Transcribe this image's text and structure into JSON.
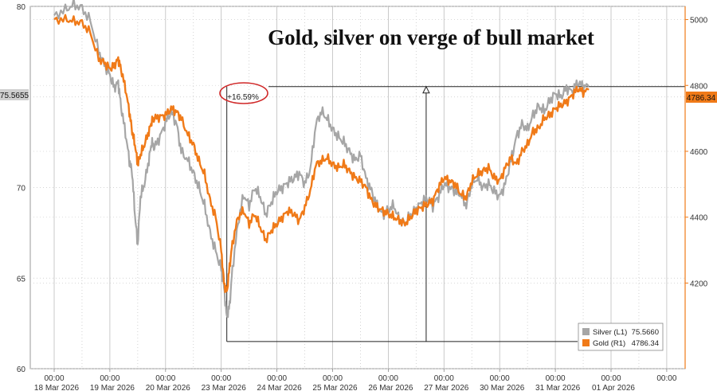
{
  "chart_data": {
    "type": "line",
    "title": "Gold, silver on verge of bull market",
    "x_ticks": [
      {
        "time": "00:00",
        "date": "18 Mar 2026"
      },
      {
        "time": "00:00",
        "date": "19 Mar 2026"
      },
      {
        "time": "00:00",
        "date": "20 Mar 2026"
      },
      {
        "time": "00:00",
        "date": "23 Mar 2026"
      },
      {
        "time": "00:00",
        "date": "24 Mar 2026"
      },
      {
        "time": "00:00",
        "date": "25 Mar 2026"
      },
      {
        "time": "00:00",
        "date": "26 Mar 2026"
      },
      {
        "time": "00:00",
        "date": "27 Mar 2026"
      },
      {
        "time": "00:00",
        "date": "30 Mar 2026"
      },
      {
        "time": "00:00",
        "date": "31 Mar 2026"
      },
      {
        "time": "00:00",
        "date": "01 Apr 2026"
      },
      {
        "time": "00:00",
        "date": ""
      }
    ],
    "left_axis": {
      "ylim": [
        60,
        80
      ],
      "ticks": [
        60,
        65,
        70,
        75,
        80
      ]
    },
    "right_axis": {
      "ylim": [
        3940,
        5040
      ],
      "ticks": [
        4200,
        4400,
        4600,
        4800,
        5000
      ]
    },
    "grid": true,
    "legend_position": "bottom-right",
    "series": [
      {
        "name": "Silver",
        "legend_label": "Silver  (L1)",
        "legend_value": "75.5660",
        "last_value_tag": "75.5655",
        "axis": "left",
        "color": "#a6a6a6",
        "points": [
          [
            0.0,
            79.5
          ],
          [
            0.2,
            79.8
          ],
          [
            0.35,
            80.1
          ],
          [
            0.5,
            79.9
          ],
          [
            0.65,
            79.2
          ],
          [
            0.8,
            77.5
          ],
          [
            0.9,
            76.8
          ],
          [
            1.0,
            76.2
          ],
          [
            1.08,
            75.5
          ],
          [
            1.15,
            75.8
          ],
          [
            1.2,
            74.5
          ],
          [
            1.28,
            73.0
          ],
          [
            1.35,
            71.5
          ],
          [
            1.4,
            70.8
          ],
          [
            1.45,
            68.5
          ],
          [
            1.5,
            66.8
          ],
          [
            1.55,
            69.5
          ],
          [
            1.62,
            70.2
          ],
          [
            1.7,
            71.5
          ],
          [
            1.75,
            72.5
          ],
          [
            1.8,
            72.2
          ],
          [
            1.9,
            72.8
          ],
          [
            2.0,
            73.6
          ],
          [
            2.1,
            74.2
          ],
          [
            2.2,
            73.5
          ],
          [
            2.28,
            72.0
          ],
          [
            2.4,
            71.5
          ],
          [
            2.5,
            70.8
          ],
          [
            2.6,
            70.0
          ],
          [
            2.7,
            69.0
          ],
          [
            2.8,
            67.5
          ],
          [
            2.9,
            66.5
          ],
          [
            3.0,
            65.5
          ],
          [
            3.05,
            64.5
          ],
          [
            3.1,
            62.8
          ],
          [
            3.15,
            63.5
          ],
          [
            3.2,
            65.5
          ],
          [
            3.3,
            68.0
          ],
          [
            3.4,
            69.6
          ],
          [
            3.5,
            69.0
          ],
          [
            3.6,
            70.0
          ],
          [
            3.7,
            69.5
          ],
          [
            3.8,
            68.5
          ],
          [
            3.9,
            69.2
          ],
          [
            4.0,
            69.8
          ],
          [
            4.1,
            70.0
          ],
          [
            4.2,
            70.3
          ],
          [
            4.3,
            70.5
          ],
          [
            4.4,
            70.8
          ],
          [
            4.5,
            70.2
          ],
          [
            4.6,
            71.0
          ],
          [
            4.7,
            73.5
          ],
          [
            4.8,
            74.2
          ],
          [
            4.9,
            73.8
          ],
          [
            5.0,
            73.2
          ],
          [
            5.1,
            72.8
          ],
          [
            5.2,
            72.5
          ],
          [
            5.3,
            72.0
          ],
          [
            5.4,
            71.5
          ],
          [
            5.5,
            71.8
          ],
          [
            5.6,
            70.5
          ],
          [
            5.7,
            69.8
          ],
          [
            5.8,
            69.0
          ],
          [
            5.9,
            68.5
          ],
          [
            6.0,
            68.8
          ],
          [
            6.1,
            69.0
          ],
          [
            6.2,
            68.2
          ],
          [
            6.3,
            68.0
          ],
          [
            6.4,
            68.5
          ],
          [
            6.5,
            68.8
          ],
          [
            6.6,
            69.2
          ],
          [
            6.7,
            69.4
          ],
          [
            6.8,
            69.0
          ],
          [
            6.9,
            69.5
          ],
          [
            7.0,
            70.2
          ],
          [
            7.1,
            70.0
          ],
          [
            7.2,
            69.8
          ],
          [
            7.3,
            69.6
          ],
          [
            7.4,
            69.0
          ],
          [
            7.5,
            70.2
          ],
          [
            7.6,
            70.5
          ],
          [
            7.7,
            70.0
          ],
          [
            7.8,
            70.2
          ],
          [
            7.9,
            69.8
          ],
          [
            8.0,
            69.5
          ],
          [
            8.1,
            70.2
          ],
          [
            8.2,
            71.5
          ],
          [
            8.3,
            72.8
          ],
          [
            8.4,
            73.5
          ],
          [
            8.5,
            73.2
          ],
          [
            8.6,
            74.0
          ],
          [
            8.7,
            74.5
          ],
          [
            8.8,
            74.2
          ],
          [
            8.9,
            74.8
          ],
          [
            9.0,
            75.2
          ],
          [
            9.1,
            75.0
          ],
          [
            9.2,
            75.5
          ],
          [
            9.3,
            75.3
          ],
          [
            9.4,
            75.8
          ],
          [
            9.5,
            75.6
          ],
          [
            9.6,
            75.57
          ]
        ]
      },
      {
        "name": "Gold",
        "legend_label": "Gold  (R1)",
        "legend_value": "4786.34",
        "last_value_tag": "4786.34",
        "axis": "right",
        "color": "#f07a18",
        "points": [
          [
            0.0,
            5000
          ],
          [
            0.2,
            5000
          ],
          [
            0.35,
            4995
          ],
          [
            0.5,
            4990
          ],
          [
            0.65,
            4960
          ],
          [
            0.8,
            4880
          ],
          [
            0.9,
            4870
          ],
          [
            1.0,
            4850
          ],
          [
            1.08,
            4860
          ],
          [
            1.15,
            4880
          ],
          [
            1.2,
            4850
          ],
          [
            1.28,
            4790
          ],
          [
            1.35,
            4720
          ],
          [
            1.4,
            4660
          ],
          [
            1.45,
            4620
          ],
          [
            1.5,
            4560
          ],
          [
            1.55,
            4590
          ],
          [
            1.62,
            4620
          ],
          [
            1.7,
            4660
          ],
          [
            1.75,
            4690
          ],
          [
            1.8,
            4700
          ],
          [
            1.9,
            4705
          ],
          [
            2.0,
            4710
          ],
          [
            2.1,
            4730
          ],
          [
            2.2,
            4720
          ],
          [
            2.28,
            4700
          ],
          [
            2.4,
            4650
          ],
          [
            2.5,
            4620
          ],
          [
            2.6,
            4570
          ],
          [
            2.7,
            4530
          ],
          [
            2.8,
            4450
          ],
          [
            2.9,
            4400
          ],
          [
            3.0,
            4300
          ],
          [
            3.05,
            4200
          ],
          [
            3.1,
            4170
          ],
          [
            3.15,
            4250
          ],
          [
            3.2,
            4320
          ],
          [
            3.3,
            4400
          ],
          [
            3.4,
            4420
          ],
          [
            3.5,
            4380
          ],
          [
            3.6,
            4410
          ],
          [
            3.7,
            4370
          ],
          [
            3.8,
            4330
          ],
          [
            3.9,
            4360
          ],
          [
            4.0,
            4380
          ],
          [
            4.1,
            4400
          ],
          [
            4.2,
            4420
          ],
          [
            4.3,
            4410
          ],
          [
            4.4,
            4390
          ],
          [
            4.5,
            4430
          ],
          [
            4.6,
            4480
          ],
          [
            4.7,
            4560
          ],
          [
            4.8,
            4570
          ],
          [
            4.9,
            4580
          ],
          [
            5.0,
            4560
          ],
          [
            5.1,
            4550
          ],
          [
            5.2,
            4560
          ],
          [
            5.3,
            4540
          ],
          [
            5.4,
            4520
          ],
          [
            5.5,
            4510
          ],
          [
            5.6,
            4490
          ],
          [
            5.7,
            4450
          ],
          [
            5.8,
            4430
          ],
          [
            5.9,
            4420
          ],
          [
            6.0,
            4410
          ],
          [
            6.1,
            4400
          ],
          [
            6.2,
            4390
          ],
          [
            6.3,
            4380
          ],
          [
            6.4,
            4400
          ],
          [
            6.5,
            4420
          ],
          [
            6.6,
            4430
          ],
          [
            6.7,
            4440
          ],
          [
            6.8,
            4450
          ],
          [
            6.9,
            4490
          ],
          [
            7.0,
            4520
          ],
          [
            7.1,
            4510
          ],
          [
            7.2,
            4500
          ],
          [
            7.3,
            4470
          ],
          [
            7.4,
            4460
          ],
          [
            7.5,
            4510
          ],
          [
            7.6,
            4530
          ],
          [
            7.7,
            4540
          ],
          [
            7.8,
            4550
          ],
          [
            7.9,
            4520
          ],
          [
            8.0,
            4510
          ],
          [
            8.1,
            4550
          ],
          [
            8.2,
            4580
          ],
          [
            8.3,
            4560
          ],
          [
            8.4,
            4600
          ],
          [
            8.5,
            4620
          ],
          [
            8.6,
            4660
          ],
          [
            8.7,
            4670
          ],
          [
            8.8,
            4700
          ],
          [
            8.9,
            4710
          ],
          [
            9.0,
            4730
          ],
          [
            9.1,
            4740
          ],
          [
            9.2,
            4750
          ],
          [
            9.3,
            4770
          ],
          [
            9.4,
            4790
          ],
          [
            9.5,
            4780
          ],
          [
            9.6,
            4786.34
          ]
        ]
      }
    ],
    "annotation": {
      "label": "+16.59%",
      "from": {
        "x": 3.1,
        "y_left": 61.5
      },
      "to": {
        "x": 6.68,
        "y_left": 75.57
      }
    }
  }
}
